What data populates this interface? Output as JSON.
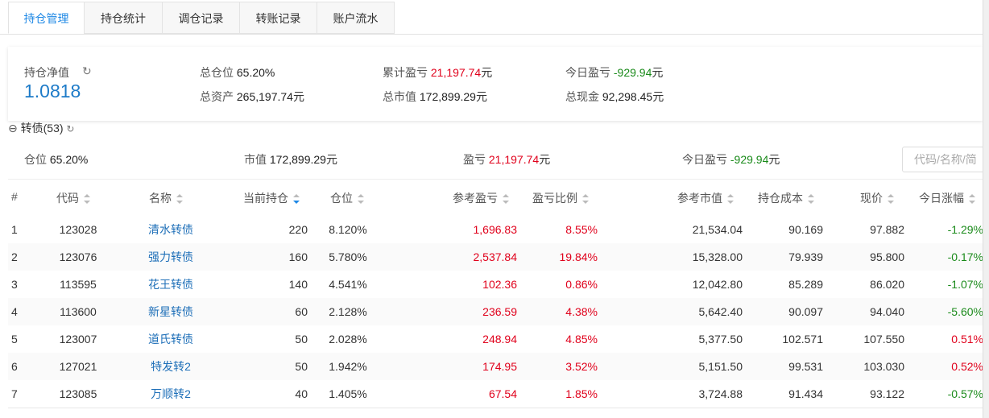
{
  "tabs": [
    "持仓管理",
    "持仓统计",
    "调仓记录",
    "转账记录",
    "账户流水"
  ],
  "summary": {
    "nav_label": "持仓净值",
    "nav_value": "1.0818",
    "items": [
      {
        "label": "总仓位",
        "value": "65.20%",
        "unit": "",
        "tone": "plain"
      },
      {
        "label": "累计盈亏",
        "value": "21,197.74",
        "unit": "元",
        "tone": "up"
      },
      {
        "label": "今日盈亏",
        "value": "-929.94",
        "unit": "元",
        "tone": "down"
      },
      {
        "label": "总资产",
        "value": "265,197.74",
        "unit": "元",
        "tone": "plain"
      },
      {
        "label": "总市值",
        "value": "172,899.29",
        "unit": "元",
        "tone": "plain"
      },
      {
        "label": "总现金",
        "value": "92,298.45",
        "unit": "元",
        "tone": "plain"
      }
    ]
  },
  "group": {
    "title": "转债(53)",
    "stats": [
      {
        "label": "仓位",
        "value": "65.20%",
        "unit": "",
        "tone": "plain"
      },
      {
        "label": "市值",
        "value": "172,899.29",
        "unit": "元",
        "tone": "plain"
      },
      {
        "label": "盈亏",
        "value": "21,197.74",
        "unit": "元",
        "tone": "up"
      },
      {
        "label": "今日盈亏",
        "value": "-929.94",
        "unit": "元",
        "tone": "down"
      }
    ],
    "search_placeholder": "代码/名称/简"
  },
  "table": {
    "headers": [
      "#",
      "代码",
      "名称",
      "当前持仓",
      "仓位",
      "参考盈亏",
      "盈亏比例",
      "参考市值",
      "持仓成本",
      "现价",
      "今日涨幅"
    ],
    "rows": [
      [
        "1",
        "123028",
        "清水转债",
        "220",
        "8.120%",
        "1,696.83",
        "8.55%",
        "21,534.04",
        "90.169",
        "97.882",
        "-1.29%"
      ],
      [
        "2",
        "123076",
        "强力转债",
        "160",
        "5.780%",
        "2,537.84",
        "19.84%",
        "15,328.00",
        "79.939",
        "95.800",
        "-0.17%"
      ],
      [
        "3",
        "113595",
        "花王转债",
        "140",
        "4.541%",
        "102.36",
        "0.86%",
        "12,042.80",
        "85.289",
        "86.020",
        "-1.07%"
      ],
      [
        "4",
        "113600",
        "新星转债",
        "60",
        "2.128%",
        "236.59",
        "4.38%",
        "5,642.40",
        "90.097",
        "94.040",
        "-5.60%"
      ],
      [
        "5",
        "123007",
        "道氏转债",
        "50",
        "2.028%",
        "248.94",
        "4.85%",
        "5,377.50",
        "102.571",
        "107.550",
        "0.51%"
      ],
      [
        "6",
        "127021",
        "特发转2",
        "50",
        "1.942%",
        "174.95",
        "3.52%",
        "5,151.50",
        "99.531",
        "103.030",
        "0.52%"
      ],
      [
        "7",
        "123085",
        "万顺转2",
        "40",
        "1.405%",
        "67.54",
        "1.85%",
        "3,724.88",
        "91.434",
        "93.122",
        "-0.57%"
      ]
    ]
  }
}
